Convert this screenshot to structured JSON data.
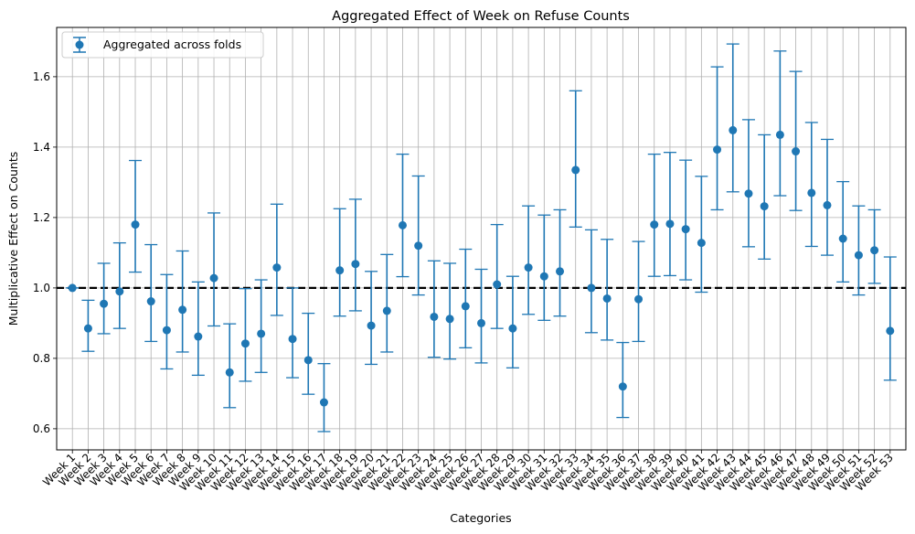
{
  "chart_data": {
    "type": "scatter",
    "title": "Aggregated Effect of Week on Refuse Counts",
    "xlabel": "Categories",
    "ylabel": "Multiplicative Effect on Counts",
    "ylim": [
      0.54,
      1.74
    ],
    "y_ticks": [
      "0.6",
      "0.8",
      "1.0",
      "1.2",
      "1.4",
      "1.6"
    ],
    "grid": true,
    "reference_line": 1.0,
    "legend": {
      "position": "top-left",
      "entries": [
        "Aggregated across folds"
      ]
    },
    "series": [
      {
        "name": "Aggregated across folds",
        "color": "#1f77b4",
        "categories": [
          "Week 1",
          "Week 2",
          "Week 3",
          "Week 4",
          "Week 5",
          "Week 6",
          "Week 7",
          "Week 8",
          "Week 9",
          "Week 10",
          "Week 11",
          "Week 12",
          "Week 13",
          "Week 14",
          "Week 15",
          "Week 16",
          "Week 17",
          "Week 18",
          "Week 19",
          "Week 20",
          "Week 21",
          "Week 22",
          "Week 23",
          "Week 24",
          "Week 25",
          "Week 26",
          "Week 27",
          "Week 28",
          "Week 29",
          "Week 30",
          "Week 31",
          "Week 32",
          "Week 33",
          "Week 34",
          "Week 35",
          "Week 36",
          "Week 37",
          "Week 38",
          "Week 39",
          "Week 40",
          "Week 41",
          "Week 42",
          "Week 43",
          "Week 44",
          "Week 45",
          "Week 46",
          "Week 47",
          "Week 48",
          "Week 49",
          "Week 50",
          "Week 51",
          "Week 52",
          "Week 53"
        ],
        "values": [
          1.0,
          0.885,
          0.955,
          0.99,
          1.18,
          0.962,
          0.88,
          0.938,
          0.862,
          1.028,
          0.76,
          0.842,
          0.87,
          1.058,
          0.855,
          0.795,
          0.675,
          1.05,
          1.068,
          0.893,
          0.935,
          1.178,
          1.12,
          0.918,
          0.912,
          0.948,
          0.9,
          1.01,
          0.885,
          1.058,
          1.033,
          1.047,
          1.335,
          1.0,
          0.97,
          0.72,
          0.968,
          1.18,
          1.182,
          1.167,
          1.128,
          1.393,
          1.448,
          1.268,
          1.232,
          1.435,
          1.388,
          1.27,
          1.235,
          1.14,
          1.093,
          1.107,
          0.878
        ],
        "lower": [
          1.0,
          0.82,
          0.87,
          0.885,
          1.045,
          0.848,
          0.77,
          0.818,
          0.752,
          0.892,
          0.66,
          0.735,
          0.76,
          0.922,
          0.745,
          0.698,
          0.592,
          0.92,
          0.935,
          0.783,
          0.818,
          1.032,
          0.98,
          0.803,
          0.798,
          0.83,
          0.787,
          0.885,
          0.773,
          0.925,
          0.908,
          0.92,
          1.173,
          0.873,
          0.852,
          0.632,
          0.848,
          1.033,
          1.035,
          1.023,
          0.988,
          1.222,
          1.273,
          1.117,
          1.082,
          1.262,
          1.22,
          1.118,
          1.093,
          1.017,
          0.98,
          1.013,
          0.738
        ],
        "upper": [
          1.0,
          0.965,
          1.07,
          1.128,
          1.362,
          1.123,
          1.038,
          1.105,
          1.017,
          1.213,
          0.898,
          0.998,
          1.023,
          1.238,
          1.0,
          0.928,
          0.785,
          1.225,
          1.252,
          1.047,
          1.095,
          1.38,
          1.318,
          1.077,
          1.07,
          1.11,
          1.053,
          1.18,
          1.033,
          1.233,
          1.207,
          1.222,
          1.56,
          1.165,
          1.138,
          0.845,
          1.132,
          1.38,
          1.385,
          1.363,
          1.317,
          1.628,
          1.693,
          1.478,
          1.435,
          1.673,
          1.615,
          1.47,
          1.422,
          1.302,
          1.233,
          1.222,
          1.088
        ]
      }
    ]
  }
}
